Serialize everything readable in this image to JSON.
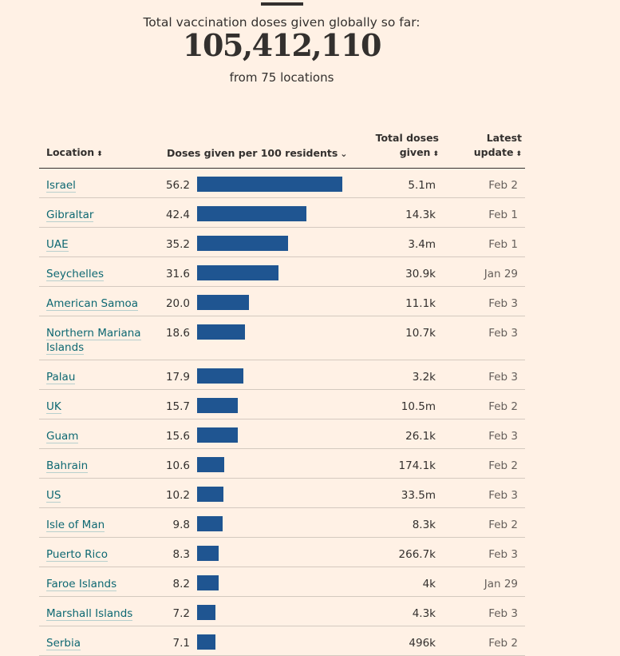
{
  "header": {
    "label": "Total vaccination doses given globally so far:",
    "total": "105,412,110",
    "sub": "from 75 locations"
  },
  "columns": {
    "location": "Location",
    "doses_per_100": "Doses given per 100 residents",
    "total_doses_line1": "Total doses",
    "total_doses_line2": "given",
    "latest_update_line1": "Latest",
    "latest_update_line2": "update"
  },
  "icons": {
    "sort": "sort-updown-icon",
    "sorted_desc": "chevron-down-icon"
  },
  "colors": {
    "bar": "#1f5591",
    "link": "#0d6872",
    "background": "#fff1e5"
  },
  "chart_data": {
    "type": "bar",
    "orientation": "horizontal",
    "title": "Total vaccination doses given globally so far:",
    "xlabel": "Doses given per 100 residents",
    "xlim": [
      0,
      56.2
    ],
    "categories": [
      "Israel",
      "Gibraltar",
      "UAE",
      "Seychelles",
      "American Samoa",
      "Northern Mariana Islands",
      "Palau",
      "UK",
      "Guam",
      "Bahrain",
      "US",
      "Isle of Man",
      "Puerto Rico",
      "Faroe Islands",
      "Marshall Islands",
      "Serbia"
    ],
    "values": [
      56.2,
      42.4,
      35.2,
      31.6,
      20.0,
      18.6,
      17.9,
      15.7,
      15.6,
      10.6,
      10.2,
      9.8,
      8.3,
      8.2,
      7.2,
      7.1
    ],
    "labels": [
      "56.2",
      "42.4",
      "35.2",
      "31.6",
      "20.0",
      "18.6",
      "17.9",
      "15.7",
      "15.6",
      "10.6",
      "10.2",
      "9.8",
      "8.3",
      "8.2",
      "7.2",
      "7.1"
    ],
    "total_doses": [
      "5.1m",
      "14.3k",
      "3.4m",
      "30.9k",
      "11.1k",
      "10.7k",
      "3.2k",
      "10.5m",
      "26.1k",
      "174.1k",
      "33.5m",
      "8.3k",
      "266.7k",
      "4k",
      "4.3k",
      "496k"
    ],
    "latest_update": [
      "Feb 2",
      "Feb 1",
      "Feb 1",
      "Jan 29",
      "Feb 3",
      "Feb 3",
      "Feb 3",
      "Feb 2",
      "Feb 3",
      "Feb 2",
      "Feb 3",
      "Feb 2",
      "Feb 3",
      "Jan 29",
      "Feb 3",
      "Feb 2"
    ]
  }
}
